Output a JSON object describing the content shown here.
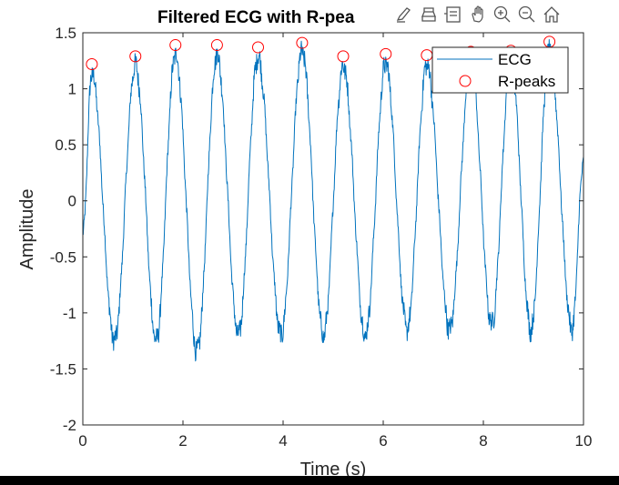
{
  "chart_data": {
    "type": "line",
    "title": "Filtered ECG with R-pea",
    "xlabel": "Time (s)",
    "ylabel": "Amplitude",
    "xlim": [
      0,
      10
    ],
    "ylim": [
      -2,
      1.5
    ],
    "xticks": [
      0,
      2,
      4,
      6,
      8,
      10
    ],
    "yticks": [
      -2,
      -1.5,
      -1,
      -0.5,
      0,
      0.5,
      1,
      1.5
    ],
    "xtick_labels": [
      "0",
      "2",
      "4",
      "6",
      "8",
      "10"
    ],
    "ytick_labels": [
      "-2",
      "-1.5",
      "-1",
      "-0.5",
      "0",
      "0.5",
      "1",
      "1.5"
    ],
    "grid": false,
    "legend_position": "top-right",
    "series": [
      {
        "name": "ECG",
        "color": "#0072bd",
        "style": "line",
        "description": "noisy quasi-sinusoidal signal with a peak at each R-peak time",
        "trough_values": [
          -1.4,
          -1.4,
          -1.5,
          -1.35,
          -1.35,
          -1.35,
          -1.35,
          -1.3,
          -1.3,
          -1.25,
          -1.3
        ]
      },
      {
        "name": "R-peaks",
        "color": "#ff0000",
        "style": "circle",
        "x": [
          0.18,
          1.05,
          1.85,
          2.68,
          3.5,
          4.38,
          5.2,
          6.05,
          6.87,
          7.75,
          8.55,
          9.32
        ],
        "y": [
          1.22,
          1.29,
          1.39,
          1.39,
          1.37,
          1.41,
          1.29,
          1.31,
          1.3,
          1.33,
          1.34,
          1.42
        ]
      }
    ]
  },
  "toolbar": {
    "icons": [
      "brush-icon",
      "export-icon",
      "datatip-icon",
      "pan-icon",
      "zoom-in-icon",
      "zoom-out-icon",
      "home-icon"
    ]
  }
}
